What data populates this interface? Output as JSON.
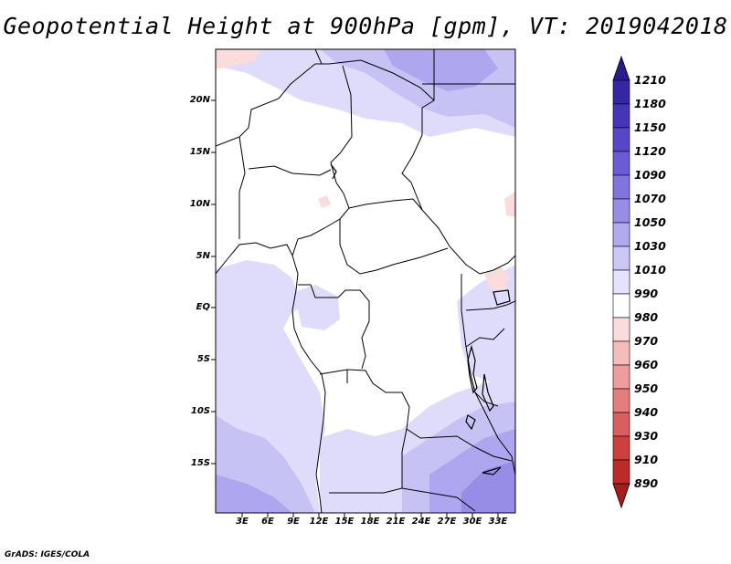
{
  "title": "Geopotential Height at 900hPa [gpm], VT: 2019042018",
  "footer": "GrADS: IGES/COLA",
  "latitude_labels": [
    "20N",
    "15N",
    "10N",
    "5N",
    "EQ",
    "5S",
    "10S",
    "15S"
  ],
  "longitude_labels": [
    "3E",
    "6E",
    "9E",
    "12E",
    "15E",
    "18E",
    "21E",
    "24E",
    "27E",
    "30E",
    "33E"
  ],
  "colorbar": {
    "levels": [
      "1210",
      "1180",
      "1150",
      "1120",
      "1090",
      "1070",
      "1050",
      "1030",
      "1010",
      "990",
      "980",
      "970",
      "960",
      "950",
      "940",
      "930",
      "910",
      "890"
    ],
    "colors": [
      "#2a1c8c",
      "#3527a4",
      "#4536b8",
      "#5747c7",
      "#6a5cd4",
      "#8074de",
      "#978de6",
      "#b0aaee",
      "#cbc8f5",
      "#e4e3fb",
      "#ffffff",
      "#fbdcdc",
      "#f5bcbc",
      "#ee9c9c",
      "#e47d7d",
      "#d95e5e",
      "#cc4040",
      "#bd2a2a",
      "#a51d1d"
    ]
  },
  "colors": {
    "land_base": "#ffffff",
    "light_blue": "#dedcfa",
    "mid_blue": "#c7c2f4",
    "deep_blue": "#aea6ee",
    "deeper_blue": "#978de6",
    "pink": "#fbdcdc"
  }
}
